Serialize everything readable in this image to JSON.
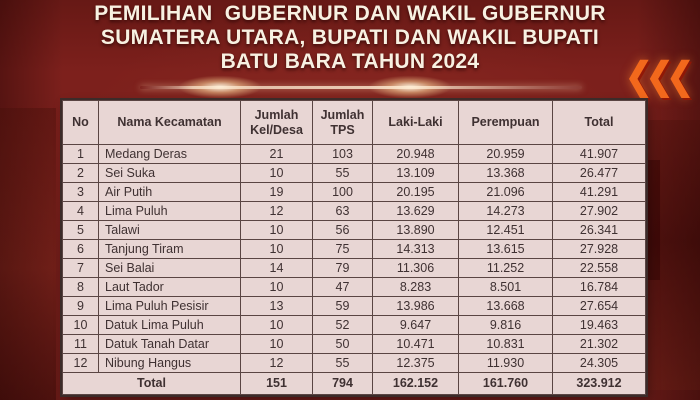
{
  "header": {
    "title_line1": "PEMILIHAN  GUBERNUR DAN WAKIL GUBERNUR",
    "title_line2": "SUMATERA UTARA, BUPATI DAN WAKIL BUPATI",
    "title_line3": "BATU BARA TAHUN 2024"
  },
  "decor": {
    "chevrons_icon": "❮❮❮"
  },
  "colors": {
    "background_maroon": "#7d201c",
    "table_background": "#e8d6d4",
    "table_text": "#3f3132",
    "title_text": "#f8f1e2",
    "chevron_orange": "#f2681c"
  },
  "chart_data": {
    "type": "table",
    "title": "PEMILIHAN GUBERNUR DAN WAKIL GUBERNUR SUMATERA UTARA, BUPATI DAN WAKIL BUPATI BATU BARA TAHUN 2024",
    "columns": [
      "No",
      "Nama Kecamatan",
      "Jumlah Kel/Desa",
      "Jumlah TPS",
      "Laki-Laki",
      "Perempuan",
      "Total"
    ],
    "rows": [
      [
        "1",
        "Medang Deras",
        "21",
        "103",
        "20.948",
        "20.959",
        "41.907"
      ],
      [
        "2",
        "Sei Suka",
        "10",
        "55",
        "13.109",
        "13.368",
        "26.477"
      ],
      [
        "3",
        "Air Putih",
        "19",
        "100",
        "20.195",
        "21.096",
        "41.291"
      ],
      [
        "4",
        "Lima Puluh",
        "12",
        "63",
        "13.629",
        "14.273",
        "27.902"
      ],
      [
        "5",
        "Talawi",
        "10",
        "56",
        "13.890",
        "12.451",
        "26.341"
      ],
      [
        "6",
        "Tanjung Tiram",
        "10",
        "75",
        "14.313",
        "13.615",
        "27.928"
      ],
      [
        "7",
        "Sei Balai",
        "14",
        "79",
        "11.306",
        "11.252",
        "22.558"
      ],
      [
        "8",
        "Laut Tador",
        "10",
        "47",
        "8.283",
        "8.501",
        "16.784"
      ],
      [
        "9",
        "Lima Puluh Pesisir",
        "13",
        "59",
        "13.986",
        "13.668",
        "27.654"
      ],
      [
        "10",
        "Datuk Lima Puluh",
        "10",
        "52",
        "9.647",
        "9.816",
        "19.463"
      ],
      [
        "11",
        "Datuk Tanah Datar",
        "10",
        "50",
        "10.471",
        "10.831",
        "21.302"
      ],
      [
        "12",
        "Nibung Hangus",
        "12",
        "55",
        "12.375",
        "11.930",
        "24.305"
      ]
    ],
    "total_row": {
      "label": "Total",
      "kel_desa": "151",
      "tps": "794",
      "laki_laki": "162.152",
      "perempuan": "161.760",
      "total": "323.912"
    }
  }
}
